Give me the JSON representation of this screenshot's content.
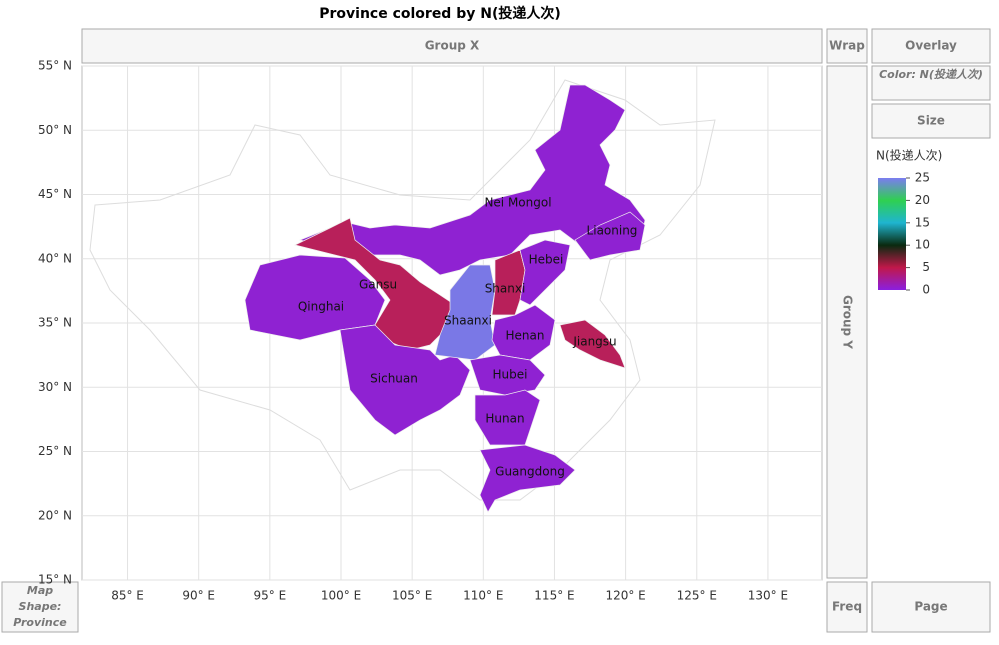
{
  "window": {
    "title": "Province colored by N(投递人次)",
    "group_x": "Group X",
    "group_y": "Group Y",
    "wrap": "Wrap",
    "overlay": "Overlay",
    "color": "Color: N(投递人次)",
    "size": "Size",
    "freq": "Freq",
    "page": "Page",
    "map_shape": "Map Shape: Province"
  },
  "chart_data": {
    "type": "map",
    "xlim": [
      81.8,
      133.8
    ],
    "ylim": [
      15,
      55
    ],
    "xticks": [
      {
        "value": 85,
        "label": "85° E"
      },
      {
        "value": 90,
        "label": "90° E"
      },
      {
        "value": 95,
        "label": "95° E"
      },
      {
        "value": 100,
        "label": "100° E"
      },
      {
        "value": 105,
        "label": "105° E"
      },
      {
        "value": 110,
        "label": "110° E"
      },
      {
        "value": 115,
        "label": "115° E"
      },
      {
        "value": 120,
        "label": "120° E"
      },
      {
        "value": 125,
        "label": "125° E"
      },
      {
        "value": 130,
        "label": "130° E"
      }
    ],
    "yticks": [
      {
        "value": 15,
        "label": "15° N"
      },
      {
        "value": 20,
        "label": "20° N"
      },
      {
        "value": 25,
        "label": "25° N"
      },
      {
        "value": 30,
        "label": "30° N"
      },
      {
        "value": 35,
        "label": "35° N"
      },
      {
        "value": 40,
        "label": "40° N"
      },
      {
        "value": 45,
        "label": "45° N"
      },
      {
        "value": 50,
        "label": "50° N"
      },
      {
        "value": 55,
        "label": "55° N"
      }
    ],
    "grid": true,
    "legend": {
      "title": "N(投递人次)",
      "ticks": [
        0,
        5,
        10,
        15,
        20,
        25
      ],
      "colors": [
        "#8b1fe0",
        "#c0184a",
        "#0a2a10",
        "#1fb5d0",
        "#2fd050",
        "#7b7cf0"
      ]
    },
    "regions": [
      {
        "name": "Nei Mongol",
        "value": 1,
        "color": "#8f22d2"
      },
      {
        "name": "Liaoning",
        "value": 1,
        "color": "#8f22d2"
      },
      {
        "name": "Qinghai",
        "value": 1,
        "color": "#8f22d2"
      },
      {
        "name": "Gansu",
        "value": 3,
        "color": "#b8205a"
      },
      {
        "name": "Sichuan",
        "value": 1,
        "color": "#8f22d2"
      },
      {
        "name": "Shaanxi",
        "value": 25,
        "color": "#7a78e6"
      },
      {
        "name": "Shanxi",
        "value": 3,
        "color": "#b8205a"
      },
      {
        "name": "Hebei",
        "value": 1,
        "color": "#8f22d2"
      },
      {
        "name": "Henan",
        "value": 1,
        "color": "#8f22d2"
      },
      {
        "name": "Jiangsu",
        "value": 3,
        "color": "#b8205a"
      },
      {
        "name": "Hubei",
        "value": 1,
        "color": "#8f22d2"
      },
      {
        "name": "Hunan",
        "value": 1,
        "color": "#8f22d2"
      },
      {
        "name": "Guangdong",
        "value": 1,
        "color": "#8f22d2"
      }
    ]
  }
}
